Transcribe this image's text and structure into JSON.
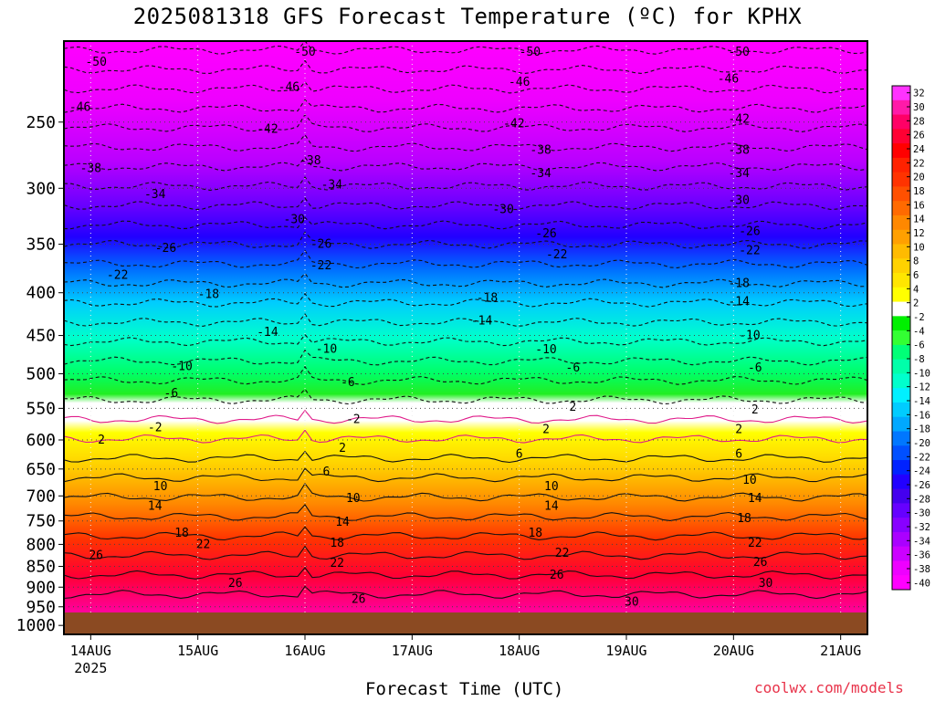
{
  "title": "2025081318 GFS Forecast Temperature (ºC) for KPHX",
  "xlabel": "Forecast Time (UTC)",
  "credit": "coolwx.com/models",
  "colors": {
    "ground": "#8B4A22",
    "contour_line": "#111111",
    "freezing_line": "#e01c8a",
    "credit": "#e8334a"
  },
  "chart_data": {
    "type": "heatmap",
    "title": "2025081318 GFS Forecast Temperature (ºC) for KPHX",
    "xlabel": "Forecast Time (UTC)",
    "ylabel": "",
    "x_ticks": [
      {
        "label": "14AUG",
        "sub": "2025",
        "day": 0
      },
      {
        "label": "15AUG",
        "sub": "",
        "day": 1
      },
      {
        "label": "16AUG",
        "sub": "",
        "day": 2
      },
      {
        "label": "17AUG",
        "sub": "",
        "day": 3
      },
      {
        "label": "18AUG",
        "sub": "",
        "day": 4
      },
      {
        "label": "19AUG",
        "sub": "",
        "day": 5
      },
      {
        "label": "20AUG",
        "sub": "",
        "day": 6
      },
      {
        "label": "21AUG",
        "sub": "",
        "day": 7
      }
    ],
    "xlim_days": [
      -0.25,
      7.25
    ],
    "y_ticks": [
      250,
      300,
      350,
      400,
      450,
      500,
      550,
      600,
      650,
      700,
      750,
      800,
      850,
      900,
      950,
      1000
    ],
    "ylim_hpa": [
      200,
      1025
    ],
    "surface_hpa": 965,
    "colorbar_ticks": [
      32,
      30,
      28,
      26,
      24,
      22,
      20,
      18,
      16,
      14,
      12,
      10,
      8,
      6,
      4,
      2,
      -2,
      -4,
      -6,
      -8,
      -10,
      -12,
      -14,
      -16,
      -18,
      -20,
      -22,
      -24,
      -26,
      -28,
      -30,
      -32,
      -34,
      -36,
      -38,
      -40
    ],
    "colorbar_colors": [
      "#ff33ff",
      "#ff1aa8",
      "#ff0066",
      "#ff0033",
      "#ff0000",
      "#ff2200",
      "#ff3300",
      "#ff5000",
      "#ff6a00",
      "#ff8800",
      "#ffa000",
      "#ffbb00",
      "#ffd200",
      "#ffe600",
      "#ffff00",
      "#ffffff",
      "#00f000",
      "#33ff33",
      "#00ff77",
      "#00ffaa",
      "#00ffcc",
      "#00f0ff",
      "#00ccff",
      "#00a8ff",
      "#0077ff",
      "#0050ff",
      "#0022ff",
      "#2200ff",
      "#4400ee",
      "#6600ff",
      "#8800ff",
      "#aa00ff",
      "#cc00ff",
      "#ee00ff",
      "#ff00ff"
    ],
    "contour_labels": [
      {
        "text": "-50",
        "day": 0.05,
        "hpa": 212
      },
      {
        "text": "-50",
        "day": 2.0,
        "hpa": 206
      },
      {
        "text": "-50",
        "day": 4.1,
        "hpa": 206
      },
      {
        "text": "-50",
        "day": 6.05,
        "hpa": 206
      },
      {
        "text": "-46",
        "day": -0.1,
        "hpa": 240
      },
      {
        "text": "-46",
        "day": 1.85,
        "hpa": 227
      },
      {
        "text": "-46",
        "day": 4.0,
        "hpa": 224
      },
      {
        "text": "-46",
        "day": 5.95,
        "hpa": 222
      },
      {
        "text": "-42",
        "day": 1.65,
        "hpa": 255
      },
      {
        "text": "-42",
        "day": 3.95,
        "hpa": 251
      },
      {
        "text": "-42",
        "day": 6.05,
        "hpa": 248
      },
      {
        "text": "-38",
        "day": 0.0,
        "hpa": 284
      },
      {
        "text": "-38",
        "day": 2.05,
        "hpa": 278
      },
      {
        "text": "-38",
        "day": 4.2,
        "hpa": 270
      },
      {
        "text": "-38",
        "day": 6.05,
        "hpa": 270
      },
      {
        "text": "-34",
        "day": 0.6,
        "hpa": 305
      },
      {
        "text": "-34",
        "day": 2.25,
        "hpa": 297
      },
      {
        "text": "-34",
        "day": 4.2,
        "hpa": 288
      },
      {
        "text": "-34",
        "day": 6.05,
        "hpa": 288
      },
      {
        "text": "-30",
        "day": 1.9,
        "hpa": 327
      },
      {
        "text": "-30",
        "day": 3.85,
        "hpa": 318
      },
      {
        "text": "-30",
        "day": 6.05,
        "hpa": 310
      },
      {
        "text": "-26",
        "day": 0.7,
        "hpa": 354
      },
      {
        "text": "-26",
        "day": 2.15,
        "hpa": 350
      },
      {
        "text": "-26",
        "day": 4.25,
        "hpa": 340
      },
      {
        "text": "-26",
        "day": 6.15,
        "hpa": 338
      },
      {
        "text": "-22",
        "day": 0.25,
        "hpa": 381
      },
      {
        "text": "-22",
        "day": 2.15,
        "hpa": 371
      },
      {
        "text": "-22",
        "day": 4.35,
        "hpa": 360
      },
      {
        "text": "-22",
        "day": 6.15,
        "hpa": 356
      },
      {
        "text": "-18",
        "day": 1.1,
        "hpa": 402
      },
      {
        "text": "-18",
        "day": 3.7,
        "hpa": 406
      },
      {
        "text": "-18",
        "day": 6.05,
        "hpa": 390
      },
      {
        "text": "-14",
        "day": 1.65,
        "hpa": 446
      },
      {
        "text": "-14",
        "day": 3.65,
        "hpa": 432
      },
      {
        "text": "-14",
        "day": 6.05,
        "hpa": 410
      },
      {
        "text": "-10",
        "day": 0.85,
        "hpa": 490
      },
      {
        "text": "-10",
        "day": 2.2,
        "hpa": 467
      },
      {
        "text": "-10",
        "day": 4.25,
        "hpa": 468
      },
      {
        "text": "-10",
        "day": 6.15,
        "hpa": 450
      },
      {
        "text": "-6",
        "day": 0.75,
        "hpa": 528
      },
      {
        "text": "-6",
        "day": 2.4,
        "hpa": 512
      },
      {
        "text": "-6",
        "day": 4.5,
        "hpa": 492
      },
      {
        "text": "-6",
        "day": 6.2,
        "hpa": 492
      },
      {
        "text": "-2",
        "day": 0.6,
        "hpa": 580
      },
      {
        "text": "-2",
        "day": 2.45,
        "hpa": 567
      },
      {
        "text": "2",
        "day": 4.5,
        "hpa": 548
      },
      {
        "text": "2",
        "day": 6.2,
        "hpa": 552
      },
      {
        "text": "2",
        "day": 0.1,
        "hpa": 600
      },
      {
        "text": "2",
        "day": 2.35,
        "hpa": 614
      },
      {
        "text": "2",
        "day": 4.25,
        "hpa": 583
      },
      {
        "text": "2",
        "day": 6.05,
        "hpa": 583
      },
      {
        "text": "6",
        "day": 2.2,
        "hpa": 655
      },
      {
        "text": "6",
        "day": 4.0,
        "hpa": 624
      },
      {
        "text": "6",
        "day": 6.05,
        "hpa": 624
      },
      {
        "text": "10",
        "day": 0.65,
        "hpa": 682
      },
      {
        "text": "10",
        "day": 2.45,
        "hpa": 705
      },
      {
        "text": "10",
        "day": 4.3,
        "hpa": 682
      },
      {
        "text": "10",
        "day": 6.15,
        "hpa": 670
      },
      {
        "text": "14",
        "day": 0.6,
        "hpa": 720
      },
      {
        "text": "14",
        "day": 2.35,
        "hpa": 752
      },
      {
        "text": "14",
        "day": 4.3,
        "hpa": 720
      },
      {
        "text": "14",
        "day": 6.2,
        "hpa": 705
      },
      {
        "text": "18",
        "day": 0.85,
        "hpa": 775
      },
      {
        "text": "18",
        "day": 2.3,
        "hpa": 797
      },
      {
        "text": "18",
        "day": 4.15,
        "hpa": 775
      },
      {
        "text": "18",
        "day": 6.1,
        "hpa": 745
      },
      {
        "text": "22",
        "day": 1.05,
        "hpa": 800
      },
      {
        "text": "22",
        "day": 2.3,
        "hpa": 843
      },
      {
        "text": "22",
        "day": 4.4,
        "hpa": 820
      },
      {
        "text": "22",
        "day": 6.2,
        "hpa": 797
      },
      {
        "text": "26",
        "day": 0.05,
        "hpa": 825
      },
      {
        "text": "26",
        "day": 1.35,
        "hpa": 890
      },
      {
        "text": "26",
        "day": 2.5,
        "hpa": 930
      },
      {
        "text": "26",
        "day": 4.35,
        "hpa": 870
      },
      {
        "text": "26",
        "day": 6.25,
        "hpa": 840
      },
      {
        "text": "30",
        "day": 5.05,
        "hpa": 938
      },
      {
        "text": "30",
        "day": 6.3,
        "hpa": 890
      }
    ]
  }
}
